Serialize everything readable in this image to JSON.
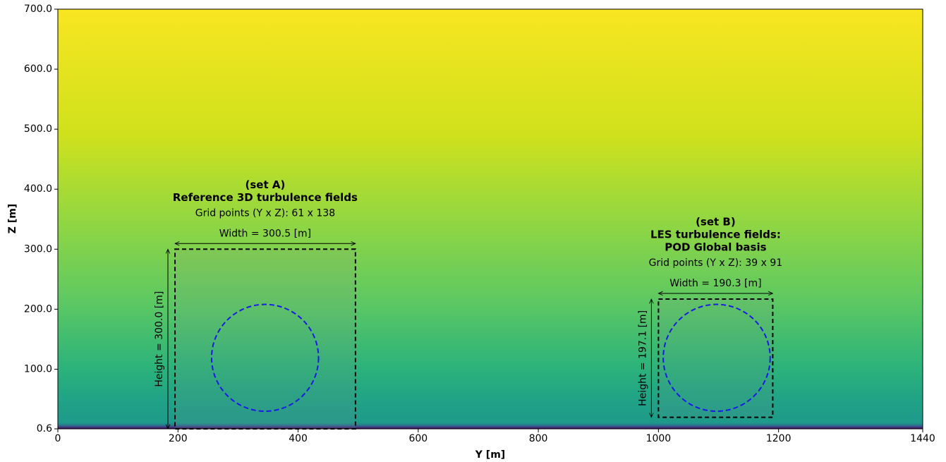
{
  "chart_data": {
    "type": "field",
    "xlabel": "Y [m]",
    "ylabel": "Z [m]",
    "xlim": [
      0,
      1440
    ],
    "ylim": [
      0.6,
      700
    ],
    "xticks": [
      0,
      200,
      400,
      600,
      800,
      1000,
      1200,
      1440
    ],
    "yticks": [
      0.6,
      {
        "value": 100,
        "label": "100.0"
      },
      {
        "value": 200,
        "label": "200.0"
      },
      {
        "value": 300,
        "label": "300.0"
      },
      {
        "value": 400,
        "label": "400.0"
      },
      {
        "value": 500,
        "label": "500.0"
      },
      {
        "value": 600,
        "label": "600.0"
      },
      {
        "value": 700,
        "label": "700.0"
      }
    ],
    "colormap": "viridis",
    "regions": [
      {
        "title": [
          "(set A)",
          "Reference 3D turbulence fields"
        ],
        "grid_label": "Grid points (Y x Z): 61 x 138",
        "width_label": "Width = 300.5 [m]",
        "height_label": "Height = 300.0 [m]",
        "y": [
          195,
          495.5
        ],
        "z": [
          0.6,
          300
        ],
        "circle": {
          "center": [
            345,
            119
          ],
          "radius": 89
        },
        "color": "#000000",
        "circle_color": "#1a1ae6"
      },
      {
        "title": [
          "(set B)",
          "LES turbulence fields:",
          "POD Global basis"
        ],
        "grid_label": "Grid points (Y x Z): 39 x 91",
        "width_label": "Width = 190.3 [m]",
        "height_label": "Height = 197.1 [m]",
        "y": [
          1000,
          1190.3
        ],
        "z": [
          19.8,
          216.9
        ],
        "circle": {
          "center": [
            1097,
            119
          ],
          "radius": 89
        },
        "color": "#000000",
        "circle_color": "#1a1ae6"
      }
    ]
  }
}
